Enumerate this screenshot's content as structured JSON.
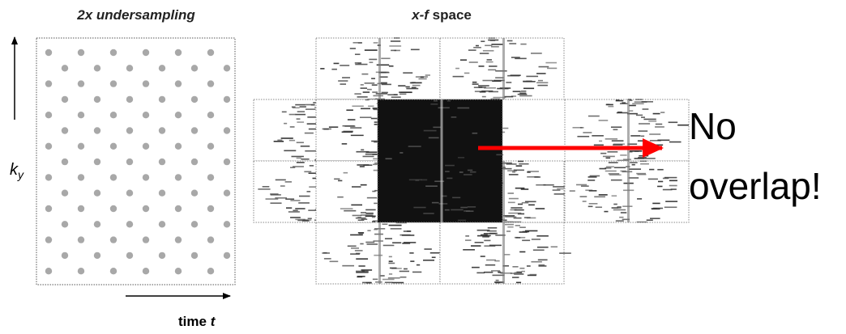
{
  "panels": [
    {
      "title": "2x undersampling",
      "y_axis_label": {
        "main": "k",
        "subscript": "y"
      },
      "x_axis_label": {
        "main": "time",
        "variable": "t"
      }
    },
    {
      "title": {
        "italic": "x-f",
        "plain": "space"
      }
    }
  ],
  "annotation": {
    "lines": [
      "No",
      "overlap!"
    ]
  }
}
